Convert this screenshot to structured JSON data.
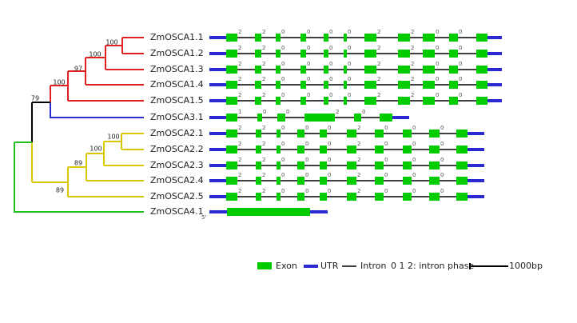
{
  "genes": [
    {
      "name": "ZmOSCA1.1",
      "phases": [
        "2",
        "2",
        "0",
        "0",
        "0",
        "0",
        "2",
        "2",
        "0",
        "0"
      ]
    },
    {
      "name": "ZmOSCA1.2",
      "phases": [
        "2",
        "2",
        "0",
        "0",
        "0",
        "0",
        "2",
        "2",
        "0",
        "0"
      ]
    },
    {
      "name": "ZmOSCA1.3",
      "phases": [
        "2",
        "2",
        "0",
        "0",
        "0",
        "0",
        "2",
        "2",
        "0",
        "0"
      ]
    },
    {
      "name": "ZmOSCA1.4",
      "phases": [
        "2",
        "2",
        "0",
        "0",
        "0",
        "0",
        "2",
        "2",
        "0",
        "0"
      ]
    },
    {
      "name": "ZmOSCA1.5",
      "phases": [
        "2",
        "2",
        "0",
        "0",
        "0",
        "0",
        "2",
        "2",
        "0",
        "0"
      ]
    },
    {
      "name": "ZmOSCA3.1",
      "phases": [
        "1",
        "0",
        "0",
        "2",
        "0"
      ]
    },
    {
      "name": "ZmOSCA2.1",
      "phases": [
        "2",
        "2",
        "0",
        "0",
        "0",
        "2",
        "0",
        "0",
        "0"
      ]
    },
    {
      "name": "ZmOSCA2.2",
      "phases": [
        "2",
        "2",
        "0",
        "0",
        "0",
        "2",
        "0",
        "0",
        "0"
      ]
    },
    {
      "name": "ZmOSCA2.3",
      "phases": [
        "2",
        "2",
        "0",
        "0",
        "0",
        "2",
        "0",
        "0",
        "0"
      ]
    },
    {
      "name": "ZmOSCA2.4",
      "phases": [
        "2",
        "2",
        "0",
        "0",
        "0",
        "2",
        "0",
        "0",
        "0"
      ]
    },
    {
      "name": "ZmOSCA2.5",
      "phases": [
        "2",
        "2",
        "0",
        "0",
        "0",
        "2",
        "0",
        "0",
        "0"
      ]
    },
    {
      "name": "ZmOSCA4.1",
      "phases": []
    }
  ],
  "bootstrap": [
    "100",
    "100",
    "97",
    "100",
    "79",
    "100",
    "100",
    "89",
    "89"
  ],
  "five_prime": "5'",
  "legend": {
    "exon": "Exon",
    "utr": "UTR",
    "intron": "Intron",
    "phase": "0 1 2: intron phase",
    "scale": "1000bp"
  }
}
